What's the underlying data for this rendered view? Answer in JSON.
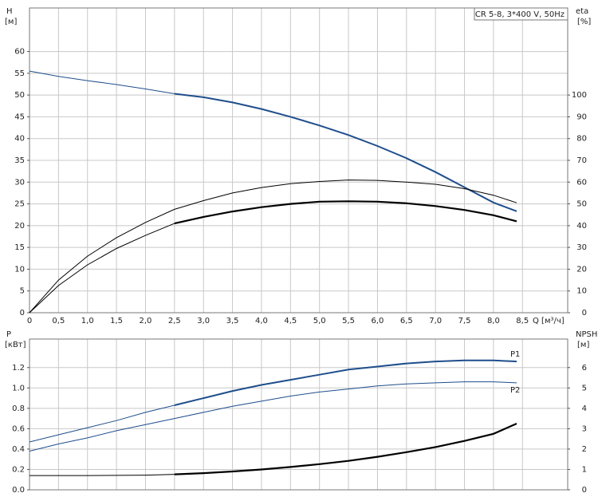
{
  "chart_data": [
    {
      "type": "line",
      "title": "CR 5-8, 3*400 V, 50Hz",
      "y_label": "H",
      "y_unit": "[м]",
      "y2_label": "eta",
      "y2_unit": "[%]",
      "x_label": "Q [м³/ч]",
      "xlim": [
        0,
        9.28
      ],
      "ylim": [
        0,
        70
      ],
      "y2lim": [
        0,
        140
      ],
      "grid": true,
      "x_tick_labels": true,
      "xticks": [
        0,
        {
          "value": 0.5,
          "label": "0,5"
        },
        {
          "value": 1,
          "label": "1,0"
        },
        {
          "value": 1.5,
          "label": "1,5"
        },
        {
          "value": 2,
          "label": "2,0"
        },
        {
          "value": 2.5,
          "label": "2,5"
        },
        {
          "value": 3,
          "label": "3,0"
        },
        {
          "value": 3.5,
          "label": "3,5"
        },
        {
          "value": 4,
          "label": "4,0"
        },
        {
          "value": 4.5,
          "label": "4,5"
        },
        {
          "value": 5,
          "label": "5,0"
        },
        {
          "value": 5.5,
          "label": "5,5"
        },
        {
          "value": 6,
          "label": "6,0"
        },
        {
          "value": 6.5,
          "label": "6,5"
        },
        {
          "value": 7,
          "label": "7,0"
        },
        {
          "value": 7.5,
          "label": "7,5"
        },
        {
          "value": 8,
          "label": "8,0"
        },
        {
          "value": 8.5,
          "label": "8,5"
        }
      ],
      "yticks": [
        0,
        5,
        10,
        15,
        20,
        25,
        30,
        35,
        40,
        45,
        50,
        55,
        60
      ],
      "y2ticks": [
        0,
        10,
        20,
        30,
        40,
        50,
        60,
        70,
        80,
        90,
        100
      ],
      "series": [
        {
          "color": "#1f4e8c",
          "width": 1,
          "x": [
            0,
            0.5,
            1,
            1.5,
            2,
            2.5
          ],
          "values": [
            55.5,
            54.3,
            53.3,
            52.4,
            51.4,
            50.3
          ]
        },
        {
          "color": "#1f4e8c",
          "width": 2,
          "x": [
            2.5,
            3,
            3.5,
            4,
            4.5,
            5,
            5.5,
            6,
            6.5,
            7,
            7.5,
            8,
            8.4
          ],
          "values": [
            50.3,
            49.5,
            48.3,
            46.8,
            45,
            43,
            40.8,
            38.3,
            35.5,
            32.3,
            28.8,
            25.3,
            23.3
          ]
        },
        {
          "color": "#000000",
          "width": 1,
          "axis": "y2",
          "x": [
            0,
            0.5,
            1,
            1.5,
            2,
            2.5,
            3,
            3.5,
            4,
            4.5,
            5,
            5.5,
            6,
            6.5,
            7,
            7.5,
            8,
            8.4
          ],
          "values": [
            0,
            15,
            26,
            34.5,
            41.5,
            47.5,
            51.5,
            55,
            57.5,
            59.3,
            60.3,
            61,
            60.8,
            60,
            59,
            57,
            54,
            50.5
          ]
        },
        {
          "color": "#000000",
          "width": 1,
          "axis": "y2",
          "x": [
            0,
            0.5,
            1,
            1.5,
            2,
            2.5
          ],
          "values": [
            0,
            12.5,
            22,
            29.5,
            35.5,
            41
          ]
        },
        {
          "color": "#000000",
          "width": 2.2,
          "axis": "y2",
          "x": [
            2.5,
            3,
            3.5,
            4,
            4.5,
            5,
            5.5,
            6,
            6.5,
            7,
            7.5,
            8,
            8.4
          ],
          "values": [
            41,
            44,
            46.5,
            48.5,
            50,
            51,
            51.2,
            51,
            50.3,
            49,
            47.2,
            44.8,
            42
          ]
        }
      ]
    },
    {
      "type": "line",
      "y_label": "P",
      "y_unit": "[кВт]",
      "y2_label": "NPSH",
      "y2_unit": "[м]",
      "xlim": [
        0,
        9.28
      ],
      "ylim": [
        0,
        1.48
      ],
      "y2lim": [
        0,
        7.4
      ],
      "grid": true,
      "x_tick_labels": false,
      "xticks": [
        0,
        0.5,
        1,
        1.5,
        2,
        2.5,
        3,
        3.5,
        4,
        4.5,
        5,
        5.5,
        6,
        6.5,
        7,
        7.5,
        8,
        8.5
      ],
      "yticks": [
        {
          "value": 0,
          "label": "0.0"
        },
        0.2,
        0.4,
        0.6,
        0.8,
        {
          "value": 1,
          "label": "1.0"
        },
        1.2
      ],
      "y2ticks": [
        0,
        1,
        2,
        3,
        4,
        5,
        6
      ],
      "series": [
        {
          "color": "#1f4e8c",
          "width": 1,
          "x": [
            0,
            0.5,
            1,
            1.5,
            2,
            2.5
          ],
          "values": [
            0.47,
            0.54,
            0.61,
            0.68,
            0.76,
            0.83
          ]
        },
        {
          "name": "P1",
          "color": "#1f4e8c",
          "width": 2,
          "x": [
            2.5,
            3,
            3.5,
            4,
            4.5,
            5,
            5.5,
            6,
            6.5,
            7,
            7.5,
            8,
            8.4
          ],
          "values": [
            0.83,
            0.9,
            0.97,
            1.03,
            1.08,
            1.13,
            1.18,
            1.21,
            1.24,
            1.26,
            1.27,
            1.27,
            1.26
          ]
        },
        {
          "name": "P2",
          "color": "#1f4e8c",
          "width": 1,
          "x": [
            0,
            0.5,
            1,
            1.5,
            2,
            2.5,
            3,
            3.5,
            4,
            4.5,
            5,
            5.5,
            6,
            6.5,
            7,
            7.5,
            8,
            8.4
          ],
          "values": [
            0.38,
            0.45,
            0.51,
            0.58,
            0.64,
            0.7,
            0.76,
            0.82,
            0.87,
            0.92,
            0.96,
            0.99,
            1.02,
            1.04,
            1.05,
            1.06,
            1.06,
            1.05
          ]
        },
        {
          "color": "#000000",
          "width": 1,
          "axis": "y2",
          "x": [
            0,
            0.5,
            1,
            1.5,
            2,
            2.5
          ],
          "values": [
            0.7,
            0.7,
            0.7,
            0.71,
            0.72,
            0.76
          ]
        },
        {
          "color": "#000000",
          "width": 2.2,
          "axis": "y2",
          "x": [
            2.5,
            3,
            3.5,
            4,
            4.5,
            5,
            5.5,
            6,
            6.5,
            7,
            7.5,
            8,
            8.4
          ],
          "values": [
            0.76,
            0.82,
            0.9,
            1,
            1.12,
            1.26,
            1.42,
            1.62,
            1.85,
            2.1,
            2.4,
            2.75,
            3.25
          ]
        }
      ]
    }
  ]
}
